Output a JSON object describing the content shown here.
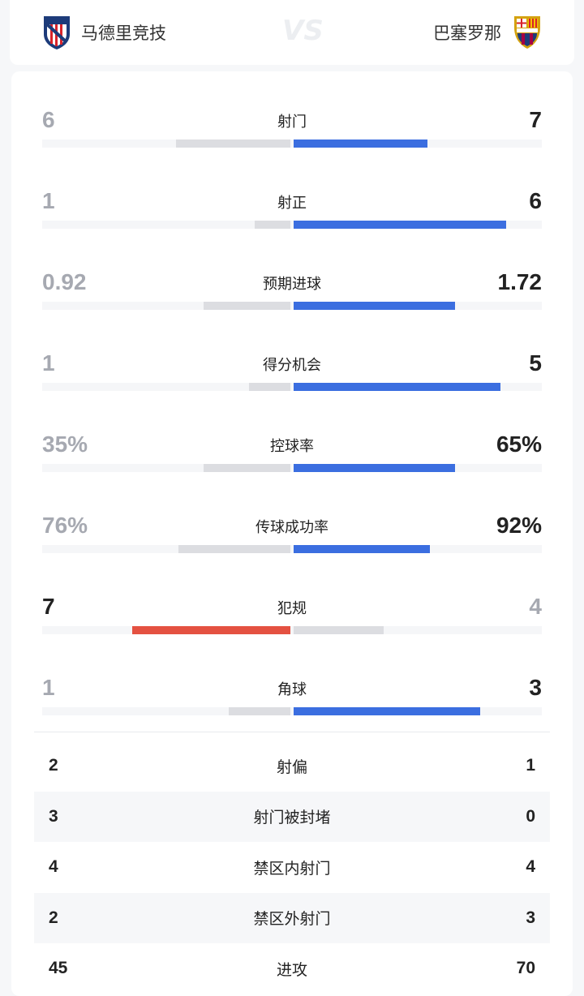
{
  "header": {
    "home_team": "马德里竞技",
    "away_team": "巴塞罗那",
    "vs": "VS"
  },
  "colors": {
    "home_bar": "#e45141",
    "away_bar": "#3b6ee0",
    "lose_bar": "#dcdde1"
  },
  "stats": [
    {
      "label": "射门",
      "home": "6",
      "away": "7",
      "h": 6,
      "a": 7
    },
    {
      "label": "射正",
      "home": "1",
      "away": "6",
      "h": 1,
      "a": 6
    },
    {
      "label": "预期进球",
      "home": "0.92",
      "away": "1.72",
      "h": 0.92,
      "a": 1.72
    },
    {
      "label": "得分机会",
      "home": "1",
      "away": "5",
      "h": 1,
      "a": 5
    },
    {
      "label": "控球率",
      "home": "35%",
      "away": "65%",
      "h": 35,
      "a": 65
    },
    {
      "label": "传球成功率",
      "home": "76%",
      "away": "92%",
      "h": 76,
      "a": 92
    },
    {
      "label": "犯规",
      "home": "7",
      "away": "4",
      "h": 7,
      "a": 4
    },
    {
      "label": "角球",
      "home": "1",
      "away": "3",
      "h": 1,
      "a": 3
    }
  ],
  "table": [
    {
      "label": "射偏",
      "home": "2",
      "away": "1"
    },
    {
      "label": "射门被封堵",
      "home": "3",
      "away": "0"
    },
    {
      "label": "禁区内射门",
      "home": "4",
      "away": "4"
    },
    {
      "label": "禁区外射门",
      "home": "2",
      "away": "3"
    },
    {
      "label": "进攻",
      "home": "45",
      "away": "70"
    }
  ]
}
